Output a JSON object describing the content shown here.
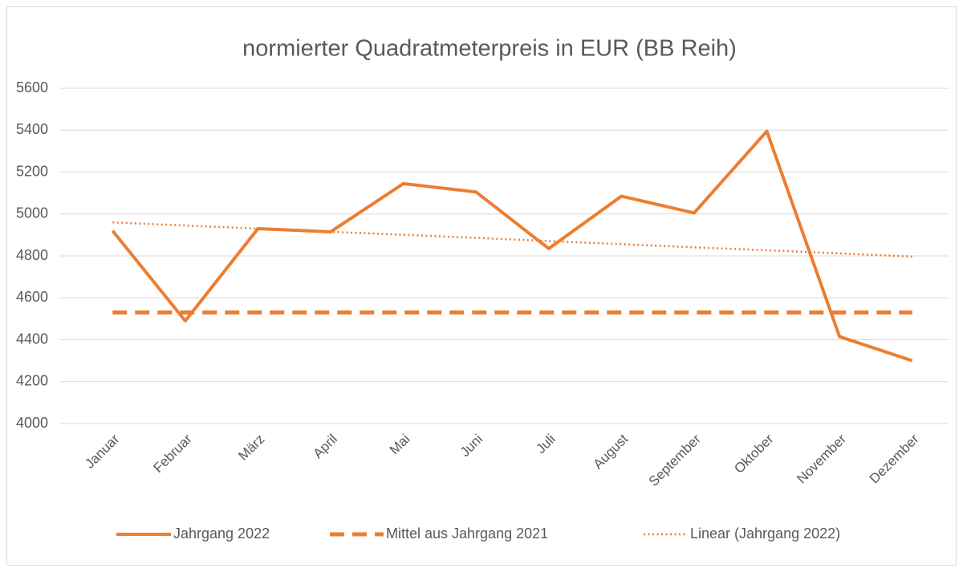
{
  "chart_data": {
    "type": "line",
    "title": "normierter Quadratmeterpreis in EUR (BB Reih)",
    "categories": [
      "Januar",
      "Februar",
      "März",
      "April",
      "Mai",
      "Juni",
      "Juli",
      "August",
      "September",
      "Oktober",
      "November",
      "Dezember"
    ],
    "series": [
      {
        "name": "Jahrgang 2022",
        "color": "#ed7d31",
        "style": "solid",
        "values": [
          4920,
          4490,
          4930,
          4915,
          5145,
          5105,
          4835,
          5085,
          5005,
          5395,
          4415,
          4300
        ]
      },
      {
        "name": "Mittel aus Jahrgang 2021",
        "color": "#ed7d31",
        "style": "dashed",
        "values": [
          4530,
          4530,
          4530,
          4530,
          4530,
          4530,
          4530,
          4530,
          4530,
          4530,
          4530,
          4530
        ]
      },
      {
        "name": "Linear (Jahrgang 2022)",
        "color": "#ed7d31",
        "style": "dotted",
        "values": [
          4960,
          4945,
          4930,
          4915,
          4901,
          4886,
          4871,
          4856,
          4841,
          4827,
          4812,
          4797
        ]
      }
    ],
    "ylim": [
      4000,
      5600
    ],
    "yticks": [
      4000,
      4200,
      4400,
      4600,
      4800,
      5000,
      5200,
      5400,
      5600
    ],
    "grid": true,
    "legend": "bottom"
  }
}
